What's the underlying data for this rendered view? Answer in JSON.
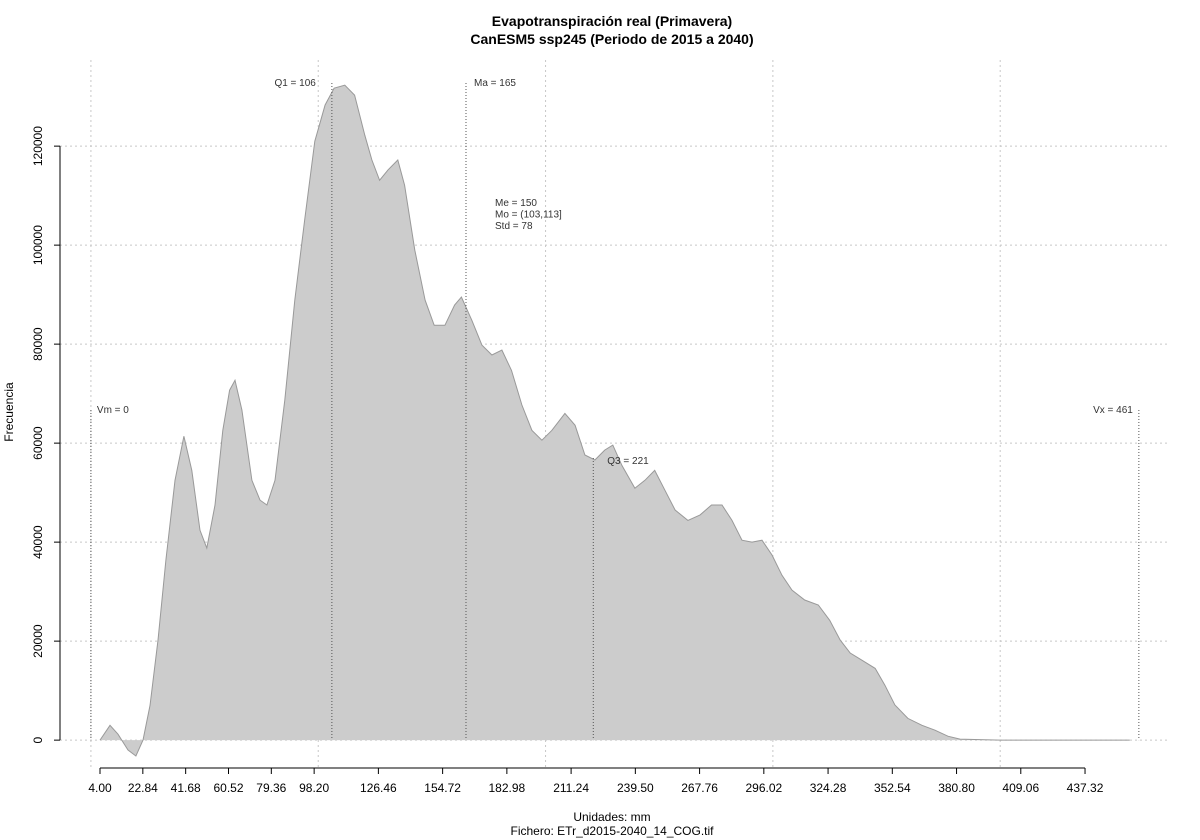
{
  "chart_data": {
    "type": "area",
    "title": "Evapotranspiración real (Primavera)",
    "subtitle": "CanESM5 ssp245 (Periodo de 2015 a 2040)",
    "x_label": "Unidades: mm",
    "caption": "Fichero: ETr_d2015-2040_14_COG.tif",
    "y_label": "Frecuencia",
    "color": "#cccccc",
    "grid": true,
    "x": [
      4,
      8.4,
      11.9,
      16.3,
      19.8,
      22.9,
      26,
      29.5,
      33,
      37,
      40.9,
      44.4,
      48,
      51,
      54.6,
      58,
      61,
      63.4,
      66.4,
      70.8,
      74.4,
      77.4,
      81,
      85.3,
      89.7,
      94,
      98.5,
      103,
      107,
      111.7,
      116,
      120.5,
      123.6,
      127,
      130.7,
      135,
      138,
      142.5,
      147,
      151,
      155.7,
      160,
      163,
      167.6,
      172,
      176.4,
      180.8,
      185,
      189.6,
      194,
      198.4,
      202.8,
      208.5,
      213,
      217.3,
      221.7,
      226,
      229.6,
      233.6,
      239.3,
      243.7,
      248,
      252.5,
      257,
      262.6,
      268,
      273,
      277.6,
      282,
      286.4,
      290.8,
      295.2,
      299.6,
      304,
      308.4,
      314,
      320,
      325,
      329.6,
      334,
      339,
      345,
      349.3,
      353.7,
      359.4,
      365.6,
      371.3,
      377,
      382.3,
      391,
      400,
      457
    ],
    "values": [
      0,
      3000,
      1200,
      -2000,
      -3200,
      0,
      7000,
      20200,
      36400,
      52500,
      61400,
      54500,
      42400,
      38800,
      47500,
      62600,
      70700,
      72700,
      66700,
      52500,
      48500,
      47500,
      52500,
      68700,
      88900,
      105000,
      121000,
      128300,
      131700,
      132300,
      130300,
      122200,
      117200,
      113100,
      115200,
      117200,
      112100,
      99000,
      88900,
      83800,
      83800,
      87900,
      89500,
      84800,
      79800,
      77800,
      78800,
      74700,
      67700,
      62600,
      60600,
      62600,
      66000,
      63600,
      57600,
      56600,
      58600,
      59600,
      55500,
      50900,
      52500,
      54500,
      50500,
      46500,
      44400,
      45500,
      47500,
      47500,
      44400,
      40400,
      40000,
      40400,
      37400,
      33300,
      30300,
      28300,
      27300,
      24200,
      20200,
      17600,
      16200,
      14500,
      11100,
      7100,
      4400,
      3000,
      2000,
      800,
      200,
      100,
      0,
      0
    ],
    "xlim": [
      -13.6,
      474.7
    ],
    "ylim": [
      -5630,
      137400
    ],
    "xticks": [
      {
        "value": 4,
        "label": "4.00"
      },
      22.84,
      41.68,
      60.52,
      79.36,
      {
        "value": 98.2,
        "label": "98.20"
      },
      126.46,
      154.72,
      182.98,
      211.24,
      {
        "value": 239.5,
        "label": "239.50"
      },
      267.76,
      296.02,
      324.28,
      352.54,
      {
        "value": 380.8,
        "label": "380.80"
      },
      409.06,
      437.32
    ],
    "yticks": [
      0,
      20000,
      40000,
      60000,
      80000,
      100000,
      120000
    ],
    "xgrid": [
      0,
      100,
      200,
      300,
      400
    ],
    "markers": [
      {
        "label": "Q1 = 106",
        "value": 106
      },
      {
        "label": "Ma = 165",
        "value": 165
      },
      {
        "label": "Q3 = 221",
        "value": 221
      },
      {
        "label": "Vm = 0",
        "value": 0
      },
      {
        "label": "Vx = 461",
        "value": 461
      }
    ],
    "stats": [
      "Me = 150",
      "Mo = (103,113]",
      "Std = 78"
    ]
  }
}
